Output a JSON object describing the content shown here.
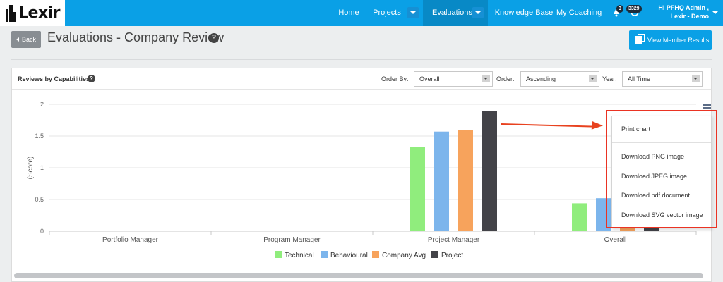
{
  "app": {
    "logo_text": "Lexir"
  },
  "nav": {
    "home": "Home",
    "projects": "Projects",
    "evaluations": "Evaluations",
    "knowledge_base": "Knowledge Base",
    "my_coaching": "My Coaching",
    "notifications_count": "3",
    "points_count": "3329",
    "greeting_line1": "Hi PFHQ Admin ,",
    "greeting_line2": "Lexir - Demo"
  },
  "page": {
    "back_label": "Back",
    "title": "Evaluations - Company Review",
    "help_glyph": "?",
    "view_member_results": "View Member Results"
  },
  "panel": {
    "title": "Reviews by Capabilities",
    "help_glyph": "?",
    "order_by_label": "Order By:",
    "order_by_value": "Overall",
    "order_label": "Order:",
    "order_value": "Ascending",
    "year_label": "Year:",
    "year_value": "All Time"
  },
  "export_menu": {
    "print_chart": "Print chart",
    "download_png": "Download PNG image",
    "download_jpeg": "Download JPEG image",
    "download_pdf": "Download pdf document",
    "download_svg": "Download SVG vector image"
  },
  "chart_data": {
    "type": "bar",
    "categories": [
      "Portfolio Manager",
      "Program Manager",
      "Project Manager",
      "Overall"
    ],
    "series": [
      {
        "name": "Technical",
        "color": "#90ed7d",
        "values": [
          null,
          null,
          1.33,
          0.44
        ]
      },
      {
        "name": "Behavioural",
        "color": "#7cb5ec",
        "values": [
          null,
          null,
          1.57,
          0.52
        ]
      },
      {
        "name": "Company Avg",
        "color": "#f7a35c",
        "values": [
          null,
          null,
          1.6,
          0.06
        ]
      },
      {
        "name": "Project",
        "color": "#434348",
        "values": [
          null,
          null,
          1.89,
          0.06
        ]
      }
    ],
    "ylabel": "(Score)",
    "ylim": [
      0,
      2
    ],
    "yticks": [
      "0",
      "0.5",
      "1",
      "1.5",
      "2"
    ],
    "grid": true,
    "legend_position": "bottom"
  }
}
